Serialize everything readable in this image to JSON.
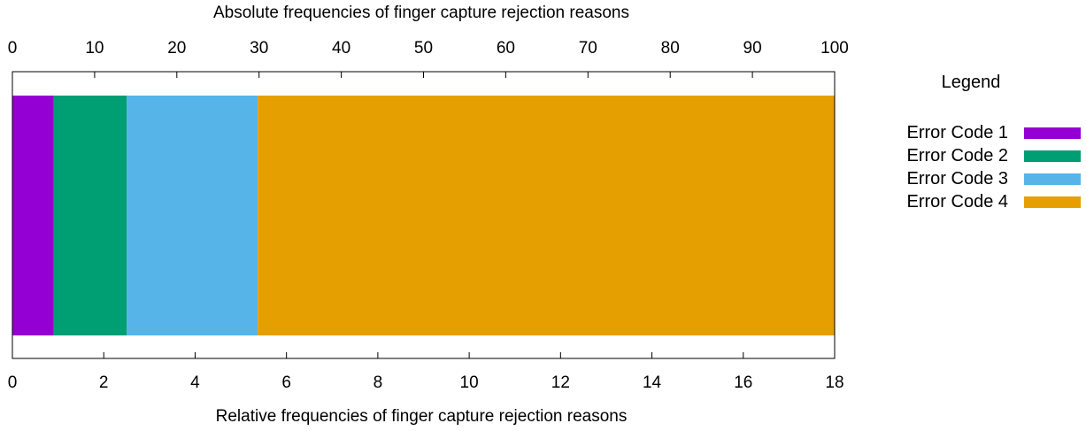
{
  "chart_data": {
    "type": "bar",
    "orientation": "horizontal-stacked",
    "title": "Absolute frequencies of finger capture rejection reasons",
    "xlabel": "Relative frequencies of finger capture rejection reasons",
    "top_axis": {
      "range": [
        0,
        100
      ],
      "ticks": [
        "0",
        "10",
        "20",
        "30",
        "40",
        "50",
        "60",
        "70",
        "80",
        "90",
        "100"
      ]
    },
    "bottom_axis": {
      "range": [
        0,
        18
      ],
      "ticks": [
        "0",
        "2",
        "4",
        "6",
        "8",
        "10",
        "12",
        "14",
        "16",
        "18"
      ]
    },
    "grid": false,
    "legend": {
      "title": "Legend",
      "position": "right"
    },
    "series": [
      {
        "name": "Error Code 1",
        "value": 0.9,
        "color": "#9400d3"
      },
      {
        "name": "Error Code 2",
        "value": 1.6,
        "color": "#009e73"
      },
      {
        "name": "Error Code 3",
        "value": 2.87,
        "color": "#56b4e9"
      },
      {
        "name": "Error Code 4",
        "value": 12.63,
        "color": "#e69f00"
      }
    ]
  }
}
